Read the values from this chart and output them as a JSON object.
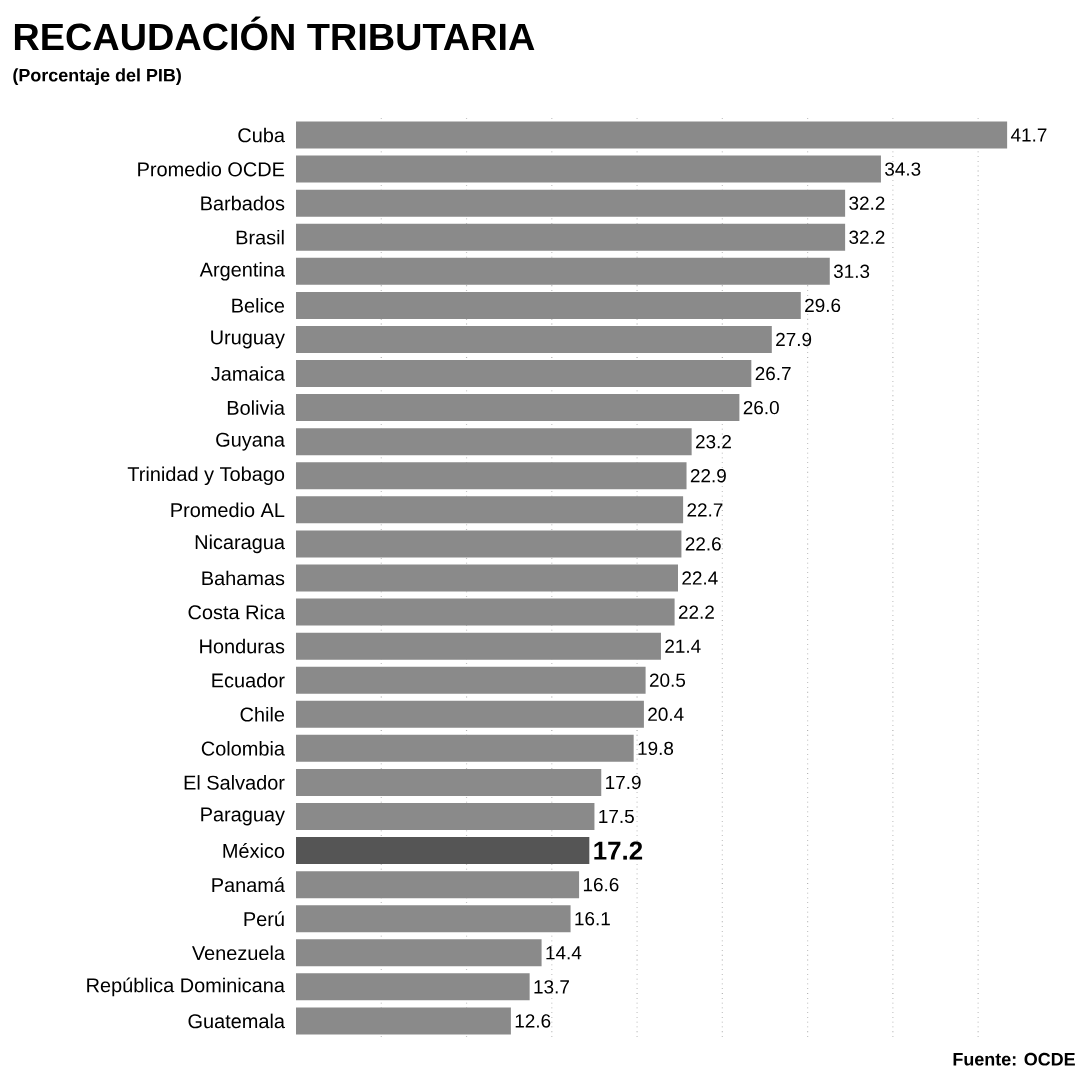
{
  "chart_data": {
    "type": "bar",
    "orientation": "horizontal",
    "title": "RECAUDACIÓN TRIBUTARIA",
    "subtitle": "(Porcentaje del PIB)",
    "categories": [
      "Cuba",
      "Promedio OCDE",
      "Barbados",
      "Brasil",
      "Argentina",
      "Belice",
      "Uruguay",
      "Jamaica",
      "Bolivia",
      "Guyana",
      "Trinidad y Tobago",
      "Promedio AL",
      "Nicaragua",
      "Bahamas",
      "Costa Rica",
      "Honduras",
      "Ecuador",
      "Chile",
      "Colombia",
      "El Salvador",
      "Paraguay",
      "México",
      "Panamá",
      "Perú",
      "Venezuela",
      "República Dominicana",
      "Guatemala"
    ],
    "values": [
      41.7,
      34.3,
      32.2,
      32.2,
      31.3,
      29.6,
      27.9,
      26.7,
      26.0,
      23.2,
      22.9,
      22.7,
      22.6,
      22.4,
      22.2,
      21.4,
      20.5,
      20.4,
      19.8,
      17.9,
      17.5,
      17.2,
      16.6,
      16.1,
      14.4,
      13.7,
      12.6
    ],
    "value_labels": [
      "41.7",
      "34.3",
      "32.2",
      "32.2",
      "31.3",
      "29.6",
      "27.9",
      "26.7",
      "26.0",
      "23.2",
      "22.9",
      "22.7",
      "22.6",
      "22.4",
      "22.2",
      "21.4",
      "20.5",
      "20.4",
      "19.8",
      "17.9",
      "17.5",
      "**17.2**",
      "16.6",
      "16.1",
      "14.4",
      "13.7",
      "12.6"
    ],
    "colors": [
      "#8a8a8a",
      "#8a8a8a",
      "#8a8a8a",
      "#8a8a8a",
      "#8a8a8a",
      "#8a8a8a",
      "#8a8a8a",
      "#8a8a8a",
      "#8a8a8a",
      "#8a8a8a",
      "#8a8a8a",
      "#8a8a8a",
      "#8a8a8a",
      "#8a8a8a",
      "#8a8a8a",
      "#8a8a8a",
      "#8a8a8a",
      "#8a8a8a",
      "#8a8a8a",
      "#8a8a8a",
      "#8a8a8a",
      "#555555",
      "#8a8a8a",
      "#8a8a8a",
      "#8a8a8a",
      "#8a8a8a",
      "#8a8a8a"
    ],
    "xticks": [
      {
        "value": 5,
        "label": null
      },
      {
        "value": 10,
        "label": null
      },
      {
        "value": 15,
        "label": null
      },
      {
        "value": 20,
        "label": null
      },
      {
        "value": 25,
        "label": null
      },
      {
        "value": 30,
        "label": null
      },
      {
        "value": 35,
        "label": null
      },
      {
        "value": 40,
        "label": null
      }
    ],
    "grid": "x",
    "tick_labels": "y",
    "annotations": [
      "Fuente: OCDE"
    ]
  }
}
